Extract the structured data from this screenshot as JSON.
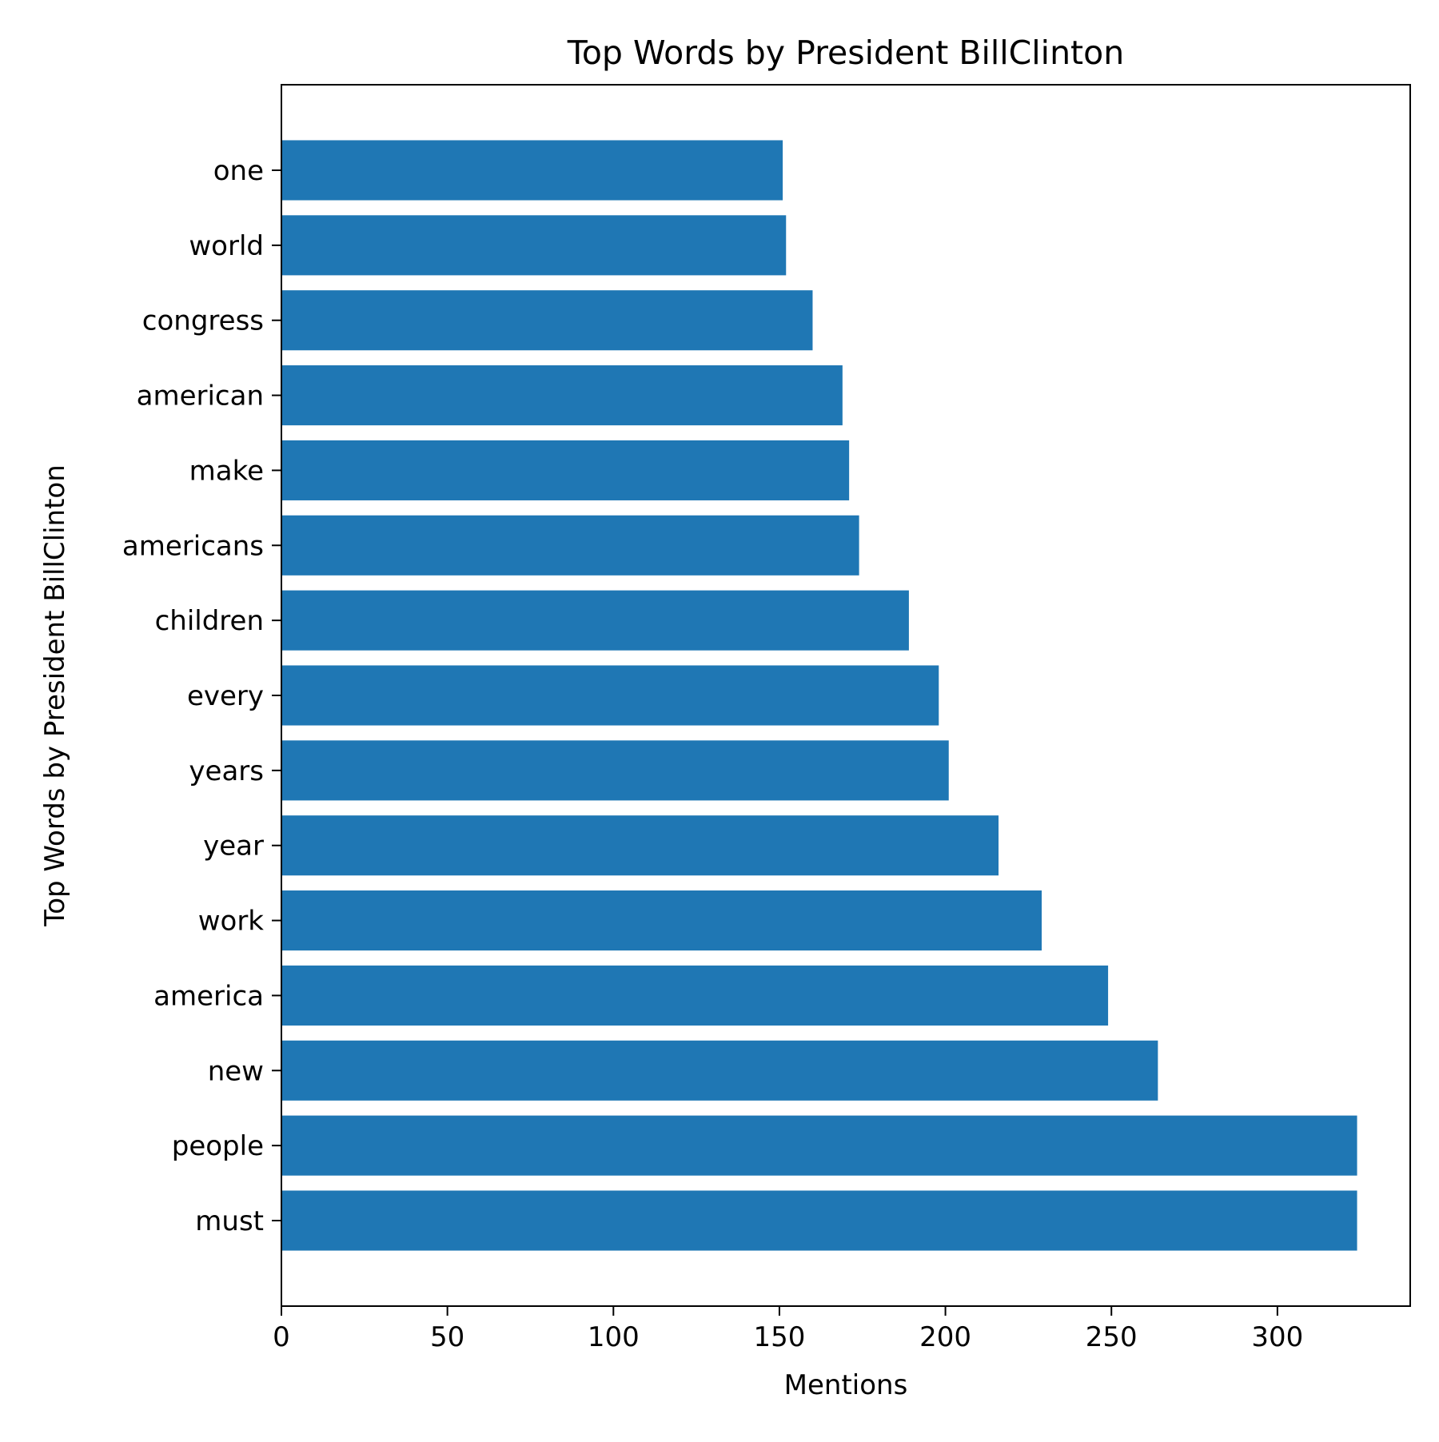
{
  "chart_data": {
    "type": "bar",
    "orientation": "horizontal",
    "title": "Top Words by President BillClinton",
    "xlabel": "Mentions",
    "ylabel": "Top Words by President BillClinton",
    "categories": [
      "must",
      "people",
      "new",
      "america",
      "work",
      "year",
      "years",
      "every",
      "children",
      "americans",
      "make",
      "american",
      "congress",
      "world",
      "one"
    ],
    "values": [
      324,
      324,
      264,
      249,
      229,
      216,
      201,
      198,
      189,
      174,
      171,
      169,
      160,
      152,
      151
    ],
    "xlim": [
      0,
      340
    ],
    "xticks": [
      0,
      50,
      100,
      150,
      200,
      250,
      300
    ],
    "bar_color": "#1f77b4",
    "grid": false,
    "legend": "none"
  }
}
